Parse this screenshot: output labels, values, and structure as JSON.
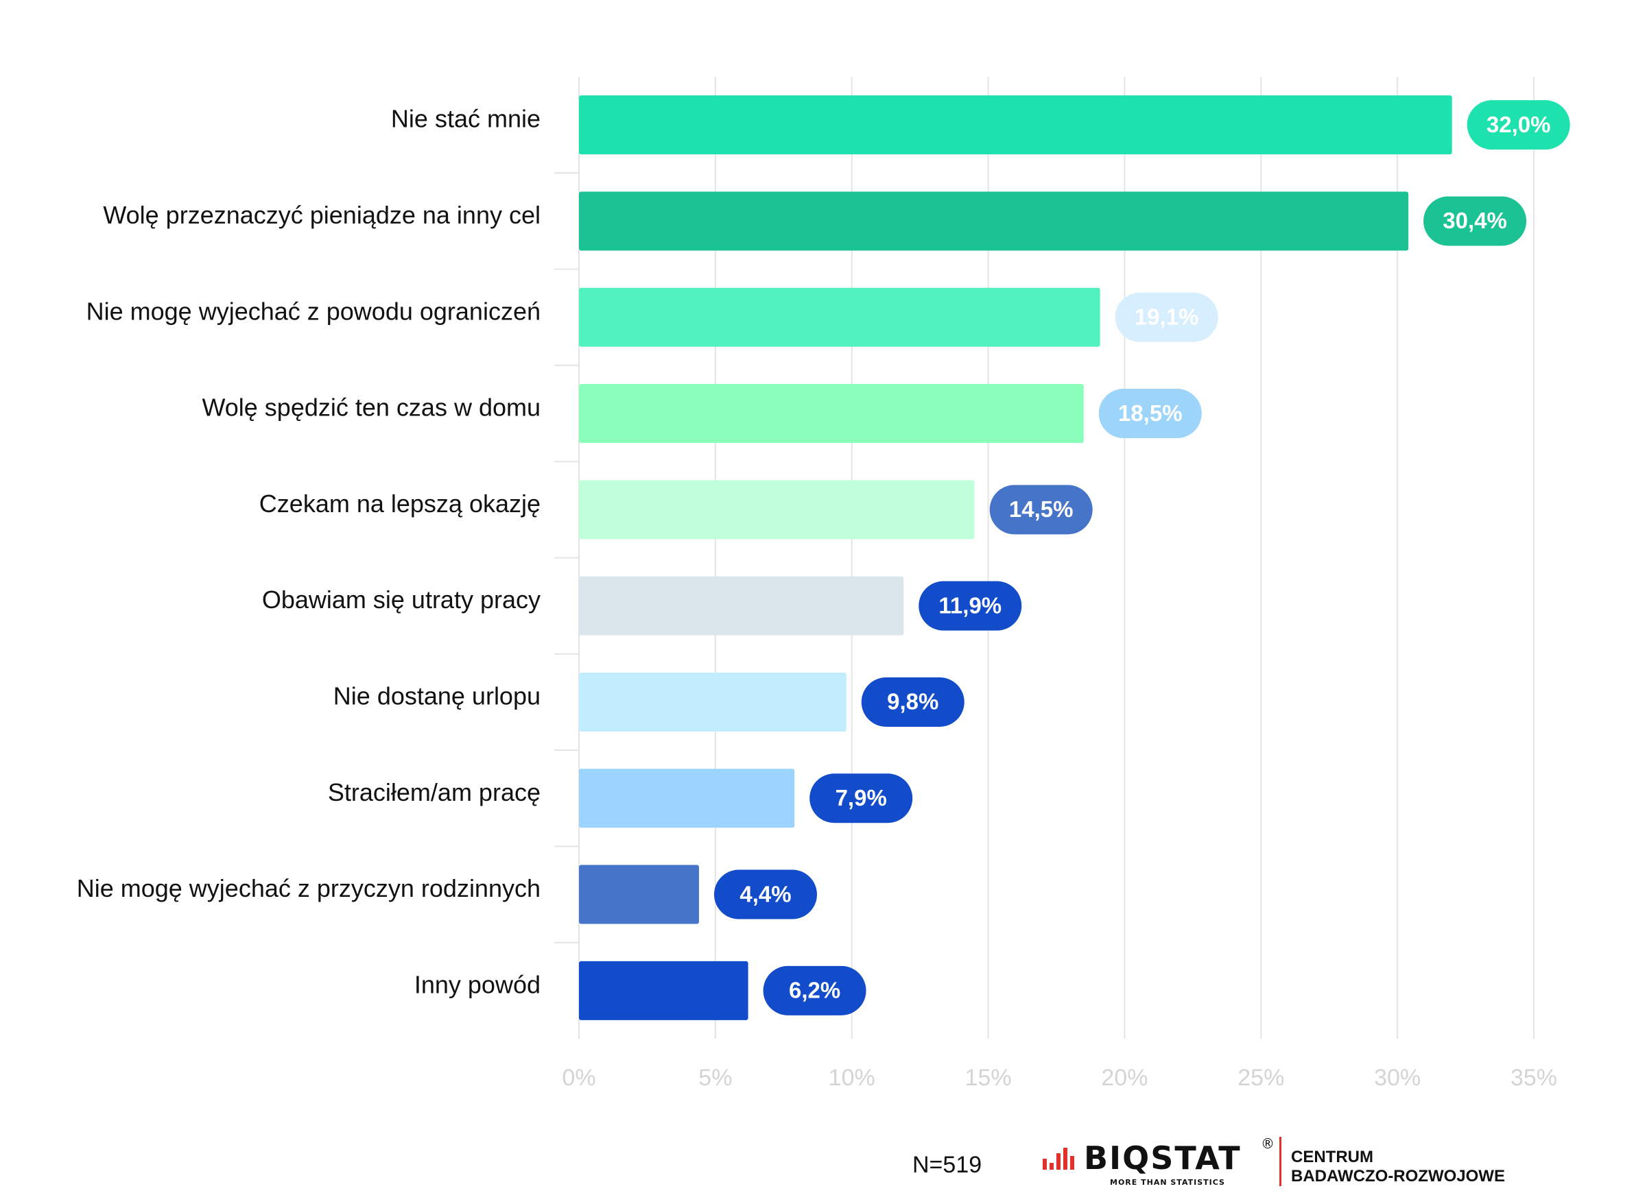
{
  "chart_data": {
    "type": "bar",
    "orientation": "horizontal",
    "title": "",
    "xlabel": "",
    "ylabel": "",
    "xlim": [
      0,
      35
    ],
    "ticks": [
      "0%",
      "5%",
      "10%",
      "15%",
      "20%",
      "25%",
      "30%",
      "35%"
    ],
    "tick_values": [
      0,
      5,
      10,
      15,
      20,
      25,
      30,
      35
    ],
    "grid": true,
    "categories": [
      "Nie stać mnie",
      "Wolę przeznaczyć pieniądze na inny cel",
      "Nie mogę wyjechać z powodu ograniczeń",
      "Wolę spędzić ten czas w domu",
      "Czekam na lepszą okazję",
      "Obawiam się utraty pracy",
      "Nie dostanę urlopu",
      "Straciłem/am pracę",
      "Nie mogę wyjechać z przyczyn rodzinnych",
      "Inny powód"
    ],
    "values": [
      32.0,
      30.4,
      19.1,
      18.5,
      14.5,
      11.9,
      9.8,
      7.9,
      4.4,
      6.2
    ],
    "value_labels": [
      "32,0%",
      "30,4%",
      "19,1%",
      "18,5%",
      "14,5%",
      "11,9%",
      "9,8%",
      "7,9%",
      "4,4%",
      "6,2%"
    ],
    "bar_colors": [
      "#1de2ae",
      "#1bc394",
      "#52f2c0",
      "#8affbb",
      "#c0ffd9",
      "#dbe6ec",
      "#c2edfe",
      "#9bd4fe",
      "#4674c9",
      "#124ccb"
    ],
    "label_colors": [
      "#1de2ae",
      "#1bc394",
      "#d6eefe",
      "#9dd4fa",
      "#4674c9",
      "#124ccb",
      "#124ccb",
      "#124ccb",
      "#124ccb",
      "#124ccb"
    ]
  },
  "footer": {
    "sample": "N=519",
    "brand": "BIQSTAT",
    "brand_tagline": "MORE THAN STATISTICS",
    "registered": "®",
    "centrum_line1": "CENTRUM",
    "centrum_line2": "BADAWCZO-ROZWOJOWE"
  },
  "colors": {
    "brand_red": "#e0322a",
    "grid": "#e4e4e4",
    "text": "#111111"
  }
}
